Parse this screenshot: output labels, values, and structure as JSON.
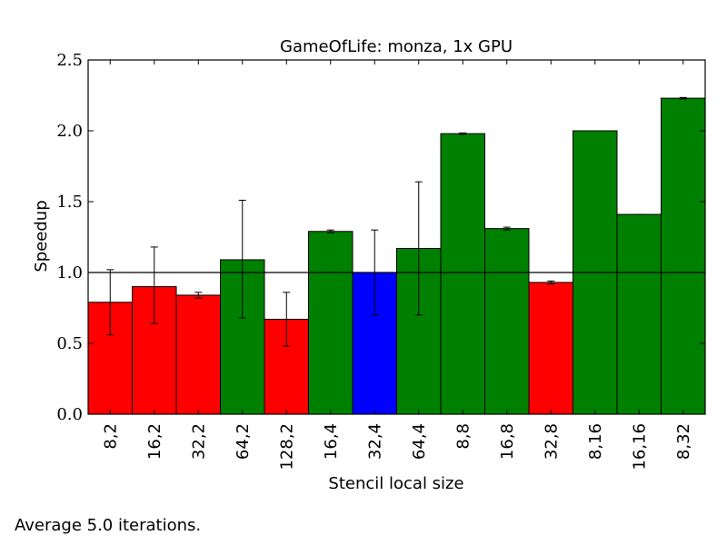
{
  "chart_data": {
    "type": "bar",
    "title": "GameOfLife: monza, 1x GPU",
    "xlabel": "Stencil local size",
    "ylabel": "Speedup",
    "ylim": [
      0,
      2.5
    ],
    "yticks": [
      "0.0",
      "0.5",
      "1.0",
      "1.5",
      "2.0",
      "2.5"
    ],
    "reference_line": 1.0,
    "grid": false,
    "categories": [
      "8,2",
      "16,2",
      "32,2",
      "64,2",
      "128,2",
      "16,4",
      "32,4",
      "64,4",
      "8,8",
      "16,8",
      "32,8",
      "8,16",
      "16,16",
      "8,32"
    ],
    "values": [
      0.79,
      0.9,
      0.84,
      1.09,
      0.67,
      1.29,
      1.0,
      1.17,
      1.98,
      1.31,
      0.93,
      2.0,
      1.41,
      2.23
    ],
    "error_low": [
      0.56,
      0.64,
      0.82,
      0.68,
      0.48,
      1.28,
      0.7,
      0.7,
      1.975,
      1.3,
      0.92,
      2.0,
      1.41,
      2.225
    ],
    "error_high": [
      1.02,
      1.18,
      0.86,
      1.51,
      0.86,
      1.3,
      1.3,
      1.64,
      1.985,
      1.32,
      0.94,
      2.0,
      1.41,
      2.235
    ],
    "bar_colors": [
      "#ff0000",
      "#ff0000",
      "#ff0000",
      "#008000",
      "#ff0000",
      "#008000",
      "#0000ff",
      "#008000",
      "#008000",
      "#008000",
      "#ff0000",
      "#008000",
      "#008000",
      "#008000"
    ]
  },
  "footnote": "Average 5.0 iterations."
}
